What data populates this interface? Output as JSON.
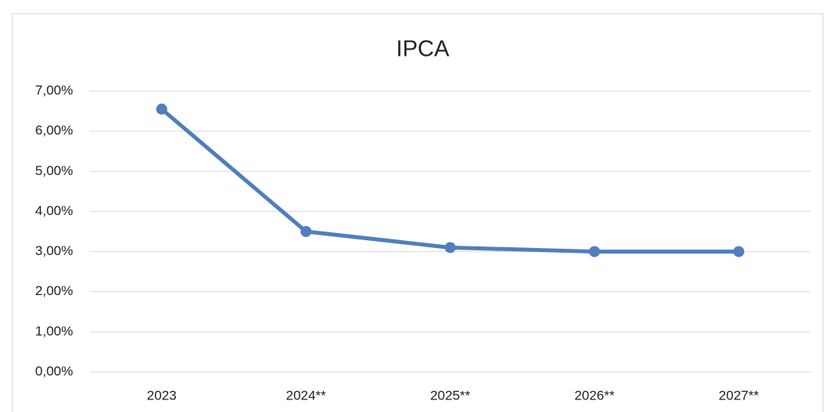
{
  "chart_data": {
    "type": "line",
    "title": "IPCA",
    "categories": [
      "2023",
      "2024**",
      "2025**",
      "2026**",
      "2027**"
    ],
    "series": [
      {
        "name": "IPCA",
        "color": "#4f7fbc",
        "values": [
          6.55,
          3.5,
          3.1,
          3.0,
          3.0
        ]
      }
    ],
    "ylim": [
      0,
      7
    ],
    "yticks": [
      {
        "value": 0,
        "label": "0,00%"
      },
      {
        "value": 1,
        "label": "1,00%"
      },
      {
        "value": 2,
        "label": "2,00%"
      },
      {
        "value": 3,
        "label": "3,00%"
      },
      {
        "value": 4,
        "label": "4,00%"
      },
      {
        "value": 5,
        "label": "5,00%"
      },
      {
        "value": 6,
        "label": "6,00%"
      },
      {
        "value": 7,
        "label": "7,00%"
      }
    ],
    "grid": true
  }
}
